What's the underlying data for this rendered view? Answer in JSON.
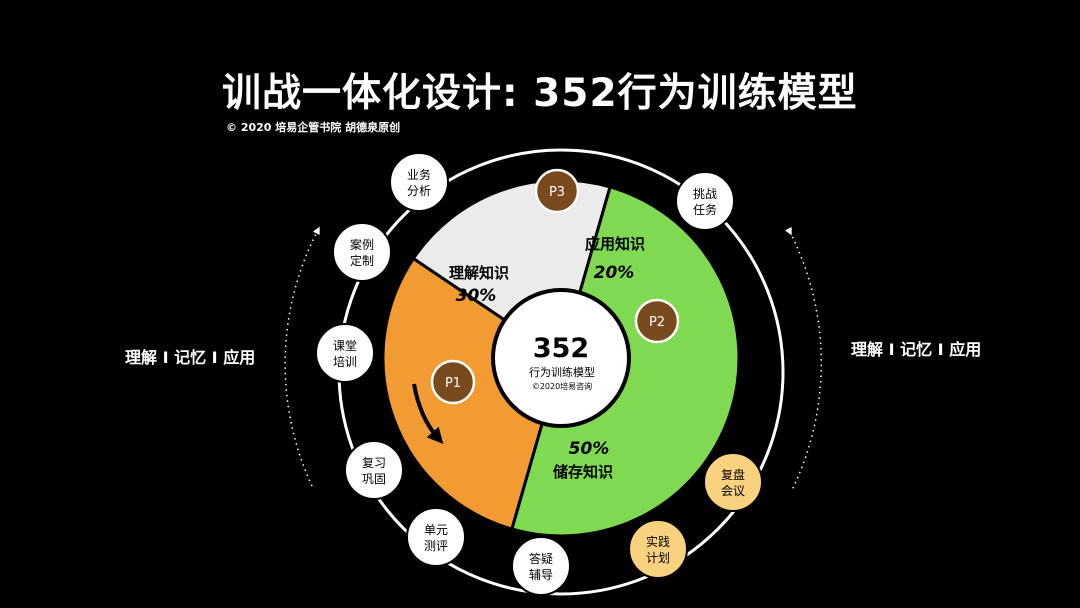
{
  "title": "训战一体化设计: 352行为训练模型",
  "copyright": "© 2020 培易企管书院 胡德泉原创",
  "side_left": "理解 I 记忆 I 应用",
  "side_right": "理解 I 记忆 I 应用",
  "center": {
    "number": "352",
    "label": "行为训练模型",
    "sub": "©2020培易咨询"
  },
  "segments": [
    {
      "key": "understand",
      "name": "理解知识",
      "percent": "30%",
      "share": 0.3,
      "color": "#f29b33"
    },
    {
      "key": "apply",
      "name": "应用知识",
      "percent": "20%",
      "share": 0.2,
      "color": "#ebebeb"
    },
    {
      "key": "store",
      "name": "储存知识",
      "percent": "50%",
      "share": 0.5,
      "color": "#7fd951"
    }
  ],
  "badges": [
    "P1",
    "P2",
    "P3"
  ],
  "nodes": [
    {
      "key": "business-analysis",
      "line1": "业务",
      "line2": "分析",
      "style": "white"
    },
    {
      "key": "case-customization",
      "line1": "案例",
      "line2": "定制",
      "style": "white"
    },
    {
      "key": "classroom-training",
      "line1": "课堂",
      "line2": "培训",
      "style": "white"
    },
    {
      "key": "review-consolidate",
      "line1": "复习",
      "line2": "巩固",
      "style": "white"
    },
    {
      "key": "unit-test",
      "line1": "单元",
      "line2": "测评",
      "style": "white"
    },
    {
      "key": "qa-tutoring",
      "line1": "答疑",
      "line2": "辅导",
      "style": "white"
    },
    {
      "key": "practice-plan",
      "line1": "实践",
      "line2": "计划",
      "style": "yellow"
    },
    {
      "key": "review-meeting",
      "line1": "复盘",
      "line2": "会议",
      "style": "yellow"
    },
    {
      "key": "challenge-task",
      "line1": "挑战",
      "line2": "任务",
      "style": "white"
    }
  ],
  "colors": {
    "background": "#000000",
    "badge": "#7a4a1f",
    "node_yellow": "#f8d27e",
    "ring": "#ffffff"
  }
}
